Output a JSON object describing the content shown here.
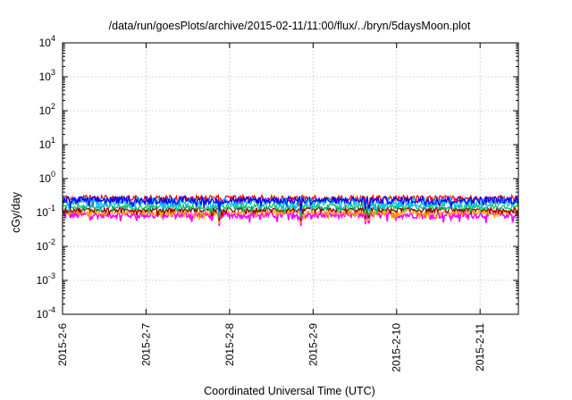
{
  "chart_data": {
    "type": "line",
    "title": "/data/run/goesPlots/archive/2015-02-11/11:00/flux/../bryn/5daysMoon.plot",
    "xlabel": "Coordinated Universal Time (UTC)",
    "ylabel": "cGy/day",
    "yscale": "log",
    "ylim": [
      0.0001,
      10000
    ],
    "xlim": [
      "2015-02-06",
      "2015-02-11 11:00"
    ],
    "grid": true,
    "x_ticks": [
      {
        "date": "2015-02-06",
        "label": "2015-2-6"
      },
      {
        "date": "2015-02-07",
        "label": "2015-2-7"
      },
      {
        "date": "2015-02-08",
        "label": "2015-2-8"
      },
      {
        "date": "2015-02-09",
        "label": "2015-2-9"
      },
      {
        "date": "2015-02-10",
        "label": "2015-2-10"
      },
      {
        "date": "2015-02-11",
        "label": "2015-2-11"
      }
    ],
    "y_ticks": [
      {
        "value": 0.0001,
        "base": "10",
        "exp": "-4"
      },
      {
        "value": 0.001,
        "base": "10",
        "exp": "-3"
      },
      {
        "value": 0.01,
        "base": "10",
        "exp": "-2"
      },
      {
        "value": 0.1,
        "base": "10",
        "exp": "-1"
      },
      {
        "value": 1,
        "base": "10",
        "exp": "0"
      },
      {
        "value": 10,
        "base": "10",
        "exp": "1"
      },
      {
        "value": 100,
        "base": "10",
        "exp": "2"
      },
      {
        "value": 1000,
        "base": "10",
        "exp": "3"
      },
      {
        "value": 10000,
        "base": "10",
        "exp": "4"
      }
    ],
    "series": [
      {
        "color": "#ff0000",
        "baseline": 0.26,
        "spread": 0.18
      },
      {
        "color": "#0000ff",
        "baseline": 0.23,
        "spread": 0.22
      },
      {
        "color": "#00bfff",
        "baseline": 0.2,
        "spread": 0.28
      },
      {
        "color": "#00cc66",
        "baseline": 0.15,
        "spread": 0.16
      },
      {
        "color": "#8b0000",
        "baseline": 0.12,
        "spread": 0.14
      },
      {
        "color": "#ffa500",
        "baseline": 0.1,
        "spread": 0.14
      },
      {
        "color": "#ff00ff",
        "baseline": 0.085,
        "spread": 0.2
      }
    ],
    "dips": [
      {
        "date": "2015-02-07 21:00",
        "value": 0.04
      },
      {
        "date": "2015-02-08 20:30",
        "value": 0.04
      },
      {
        "date": "2015-02-09 15:00",
        "value": 0.045
      },
      {
        "date": "2015-02-09 16:00",
        "value": 0.05
      }
    ]
  }
}
